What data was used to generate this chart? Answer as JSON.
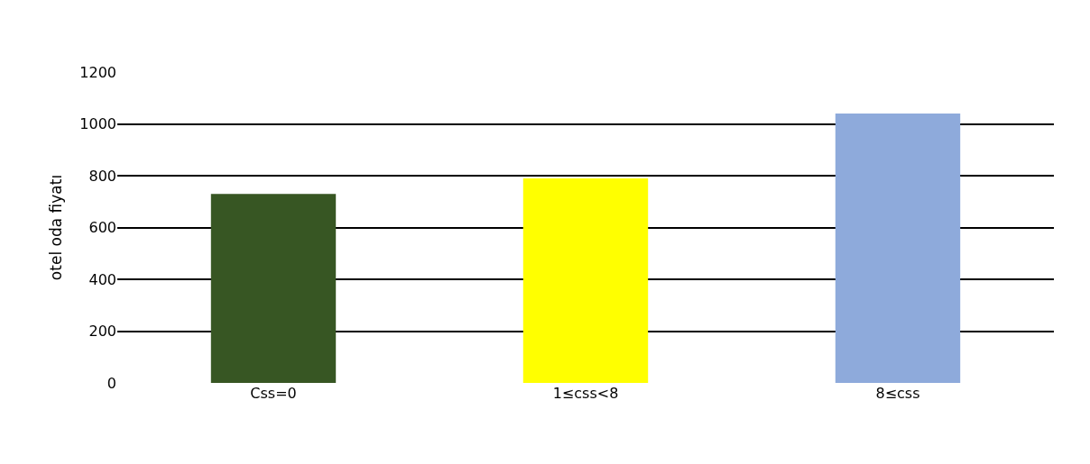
{
  "chart_data": {
    "type": "bar",
    "ylabel": "otel oda fiyatı",
    "categories": [
      "Css=0",
      "1≤css<8",
      "8≤css"
    ],
    "values": [
      730,
      790,
      1040
    ],
    "colors": [
      "#375623",
      "#ffff00",
      "#8eaadb"
    ],
    "ylim": [
      0,
      1200
    ],
    "yticks": [
      0,
      200,
      400,
      600,
      800,
      1000,
      1200
    ],
    "grid": "y"
  }
}
